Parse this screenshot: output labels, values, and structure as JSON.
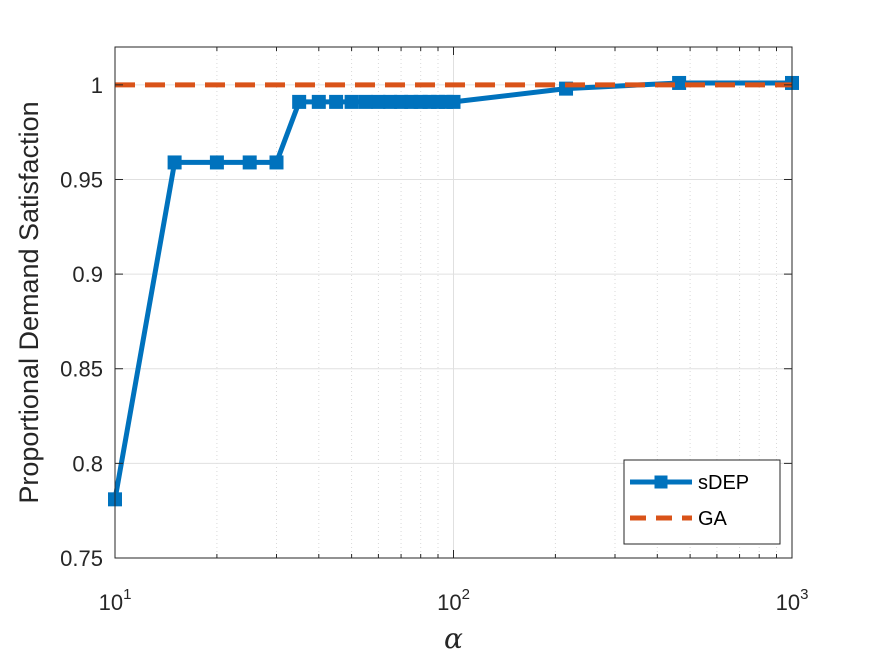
{
  "chart_data": {
    "type": "line",
    "title": "",
    "xlabel": "α",
    "ylabel": "Proportional Demand Satisfaction",
    "xscale": "log",
    "xlim": [
      10,
      1000
    ],
    "ylim": [
      0.75,
      1.02
    ],
    "x_ticks": [
      {
        "value": 10,
        "base": "10",
        "exp": "1"
      },
      {
        "value": 100,
        "base": "10",
        "exp": "2"
      },
      {
        "value": 1000,
        "base": "10",
        "exp": "3"
      }
    ],
    "y_ticks": [
      {
        "value": 0.75,
        "label": "0.75"
      },
      {
        "value": 0.8,
        "label": "0.8"
      },
      {
        "value": 0.85,
        "label": "0.85"
      },
      {
        "value": 0.9,
        "label": "0.9"
      },
      {
        "value": 0.95,
        "label": "0.95"
      },
      {
        "value": 1,
        "label": "1"
      }
    ],
    "grid": true,
    "legend_position": "bottom-right",
    "series": [
      {
        "name": "sDEP",
        "color": "#0072BD",
        "style": "solid",
        "marker": "square",
        "x": [
          10,
          15,
          20,
          25,
          30,
          35,
          40,
          45,
          50,
          55,
          60,
          65,
          70,
          75,
          80,
          85,
          90,
          95,
          100,
          215,
          464,
          1000
        ],
        "y": [
          0.781,
          0.959,
          0.959,
          0.959,
          0.959,
          0.991,
          0.991,
          0.991,
          0.991,
          0.991,
          0.991,
          0.991,
          0.991,
          0.991,
          0.991,
          0.991,
          0.991,
          0.991,
          0.991,
          0.998,
          1.001,
          1.001
        ]
      },
      {
        "name": "GA",
        "color": "#D95319",
        "style": "dashed",
        "marker": "none",
        "x": [
          10,
          1000
        ],
        "y": [
          1.0,
          1.0
        ]
      }
    ]
  }
}
